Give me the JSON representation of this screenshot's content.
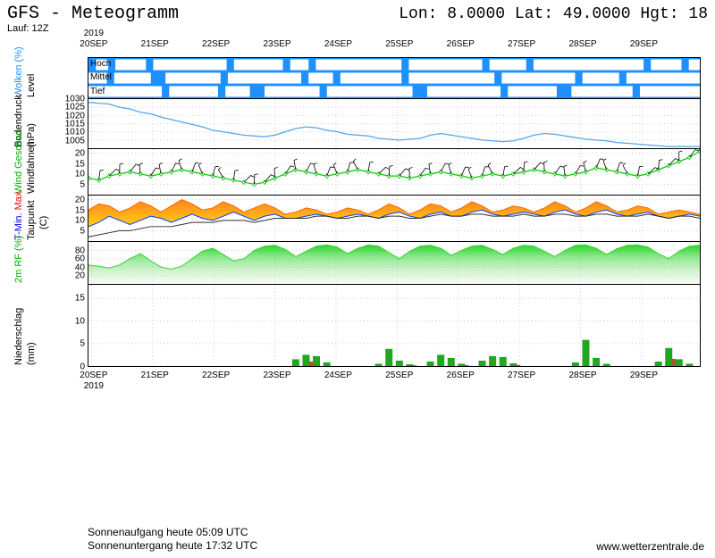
{
  "header": {
    "title": "GFS - Meteogramm",
    "lon_label": "Lon:",
    "lon": "8.0000",
    "lat_label": "Lat:",
    "lat": "49.0000",
    "hgt_label": "Hgt:",
    "hgt": "18",
    "run_label": "Lauf:",
    "run_value": "12Z"
  },
  "xaxis": {
    "year": "2019",
    "labels": [
      "20SEP",
      "21SEP",
      "22SEP",
      "23SEP",
      "24SEP",
      "25SEP",
      "26SEP",
      "27SEP",
      "28SEP",
      "29SEP"
    ],
    "n_days": 10,
    "grid_color": "#cccccc"
  },
  "panels": {
    "clouds": {
      "height": 46,
      "bg": "#1e90ff",
      "cloud_color": "#ffffff",
      "ylabel1": "Wolken (%)",
      "ylabel1_color": "#1e90ff",
      "ylabel2": "Level",
      "levels": [
        "Hoch",
        "Mittel",
        "Tief"
      ],
      "pattern": [
        [
          0,
          0.02,
          0.05,
          0.12,
          0.08,
          0.03,
          0.14,
          0.12,
          0.06,
          0.18,
          0.05,
          0.12,
          0.04,
          0.1,
          0.06,
          0.14,
          0.03,
          0.1,
          0.05,
          0.12
        ],
        [
          0.03,
          0.06,
          0.0,
          0.09,
          0.12,
          0.04,
          0.1,
          0.14,
          0.12,
          0.06,
          0.12,
          0.09,
          0.14,
          0.06,
          0.09,
          0.0,
          0.12,
          0.08,
          0.14,
          0.06
        ],
        [
          0.12,
          0.08,
          0.04,
          0.0,
          0.09,
          0.14,
          0.0,
          0.12,
          0.08,
          0.0,
          0.1,
          0.14,
          0.0,
          0.12,
          0.1,
          0.06,
          0.0,
          0.14,
          0.09,
          0.0
        ]
      ]
    },
    "pressure": {
      "height": 56,
      "ylabel1": "Bodendruck",
      "ylabel2": "(hPa)",
      "color": "#4fa8e8",
      "bg": "#ffffff",
      "grid_color": "#d9c6c6",
      "ylim": [
        1000,
        1030
      ],
      "yticks": [
        1005,
        1010,
        1015,
        1020,
        1025,
        1030
      ],
      "values": [
        1028,
        1027.5,
        1027,
        1025,
        1024,
        1022,
        1021,
        1019,
        1017.5,
        1016,
        1014.5,
        1013,
        1011,
        1010,
        1009,
        1008,
        1007.5,
        1007,
        1008,
        1010,
        1012,
        1013,
        1012.5,
        1011,
        1010,
        1008.5,
        1008,
        1007.5,
        1006,
        1005.5,
        1005,
        1005.5,
        1006,
        1008,
        1009,
        1008,
        1007,
        1006,
        1005,
        1004.5,
        1004,
        1004.5,
        1006,
        1008,
        1009,
        1008.5,
        1007.5,
        1006.5,
        1005.5,
        1005,
        1004.5,
        1003.5,
        1003,
        1002.5,
        1002,
        1001.5,
        1001,
        1001,
        1001,
        1001
      ]
    },
    "wind": {
      "height": 52,
      "ylabel1": "Wind Geschwi.",
      "ylabel1_color": "#00b000",
      "ylabel2": "Windfahnen",
      "color_speed": "#00c800",
      "color_barbs": "#000000",
      "bg": "#ffffff",
      "grid_color": "#d9c6c6",
      "ylim": [
        0,
        22
      ],
      "yticks": [
        5,
        10,
        15,
        20
      ],
      "values": [
        8,
        7,
        9,
        10,
        11,
        10,
        9,
        10,
        11,
        12,
        11,
        10,
        9,
        8,
        7,
        6,
        5,
        6,
        8,
        10,
        12,
        11,
        10,
        9,
        10,
        11,
        12,
        11,
        10,
        9,
        9,
        8,
        9,
        10,
        11,
        10,
        9,
        8,
        9,
        10,
        9,
        10,
        11,
        12,
        11,
        10,
        9,
        10,
        11,
        13,
        12,
        11,
        10,
        9,
        10,
        12,
        14,
        16,
        18,
        21
      ]
    },
    "temp": {
      "height": 52,
      "ylabel1": "T-Min.",
      "ylabel1_color": "#0000ff",
      "ylabel1b": "Max.",
      "ylabel1b_color": "#ff0000",
      "ylabel2": "Taupunkt",
      "bg": "#ffffff",
      "grid_color": "#d9c6c6",
      "ylim": [
        0,
        22
      ],
      "yticks": [
        5,
        10,
        15,
        20
      ],
      "tmax_color": "#ff6600",
      "tmin_color": "#0040ff",
      "dew_color": "#303030",
      "fill_top": "#ffcc00",
      "fill_bot": "#ff7700",
      "tmax": [
        15,
        18,
        17,
        14,
        16,
        19,
        17,
        14,
        17,
        20,
        18,
        15,
        16,
        19,
        17,
        14,
        16,
        18,
        16,
        13,
        14,
        16,
        15,
        13,
        14,
        16,
        15,
        13,
        15,
        18,
        16,
        13,
        15,
        18,
        17,
        14,
        16,
        19,
        17,
        14,
        15,
        17,
        16,
        14,
        16,
        19,
        17,
        14,
        16,
        19,
        17,
        14,
        15,
        17,
        16,
        13,
        14,
        15,
        14,
        13
      ],
      "tmin": [
        7,
        9,
        12,
        10,
        8,
        10,
        12,
        11,
        9,
        11,
        13,
        11,
        10,
        12,
        14,
        12,
        10,
        12,
        13,
        11,
        11,
        12,
        13,
        12,
        11,
        12,
        13,
        12,
        11,
        13,
        14,
        12,
        11,
        13,
        14,
        12,
        12,
        14,
        15,
        13,
        12,
        13,
        14,
        13,
        12,
        14,
        15,
        13,
        12,
        14,
        15,
        13,
        12,
        13,
        14,
        12,
        11,
        12,
        13,
        12
      ],
      "dew": [
        2,
        3,
        4,
        5,
        5,
        6,
        7,
        7,
        7,
        8,
        9,
        9,
        9,
        10,
        10,
        10,
        9,
        10,
        11,
        11,
        11,
        11,
        12,
        12,
        11,
        11,
        12,
        12,
        11,
        12,
        12,
        11,
        11,
        12,
        13,
        12,
        12,
        13,
        13,
        12,
        12,
        12,
        13,
        12,
        12,
        13,
        13,
        12,
        12,
        13,
        13,
        12,
        12,
        12,
        13,
        12,
        11,
        12,
        12,
        11
      ]
    },
    "rh": {
      "height": 48,
      "ylabel1": "2m RF (%)",
      "ylabel1_color": "#00b000",
      "bg": "#ffffff",
      "grid_color": "#d9c6c6",
      "ylim": [
        0,
        100
      ],
      "yticks": [
        20,
        40,
        60,
        80
      ],
      "fill_color": "#2dd42d",
      "fill_fade": "#e8f0e0",
      "values": [
        45,
        42,
        38,
        45,
        60,
        72,
        55,
        40,
        35,
        42,
        60,
        78,
        85,
        70,
        55,
        60,
        80,
        90,
        92,
        82,
        65,
        78,
        90,
        93,
        88,
        72,
        85,
        93,
        90,
        75,
        60,
        78,
        90,
        92,
        85,
        68,
        80,
        90,
        92,
        82,
        70,
        85,
        92,
        90,
        78,
        65,
        80,
        92,
        93,
        85,
        70,
        84,
        92,
        93,
        88,
        72,
        60,
        78,
        90,
        92
      ]
    },
    "precip": {
      "height": 92,
      "ylabel1": "Niederschlag",
      "ylabel2": "(mm)",
      "bg": "#ffffff",
      "grid_color": "#d9c6c6",
      "ylim": [
        0,
        18
      ],
      "yticks": [
        0,
        5,
        10,
        15
      ],
      "bar_color": "#1fa81f",
      "bar_color2": "#b05522",
      "values": [
        0,
        0,
        0,
        0,
        0,
        0,
        0,
        0,
        0,
        0,
        0,
        0,
        0,
        0,
        0,
        0,
        0,
        0,
        0,
        0,
        1.5,
        2.5,
        2.2,
        0.8,
        0,
        0,
        0,
        0,
        0.5,
        3.8,
        1.2,
        0.4,
        0,
        1.0,
        2.5,
        1.8,
        0.5,
        0,
        1.2,
        2.2,
        2.0,
        0.6,
        0,
        0,
        0,
        0,
        0,
        0.8,
        5.8,
        1.8,
        0.5,
        0,
        0,
        0,
        0,
        1.0,
        4.0,
        1.5,
        0.5,
        0
      ]
    }
  },
  "footer": {
    "sunrise_label": "Sonnenaufgang heute",
    "sunrise": "05:09 UTC",
    "sunset_label": "Sonnenuntergang heute",
    "sunset": "17:32 UTC",
    "credit": "www.wetterzentrale.de"
  }
}
